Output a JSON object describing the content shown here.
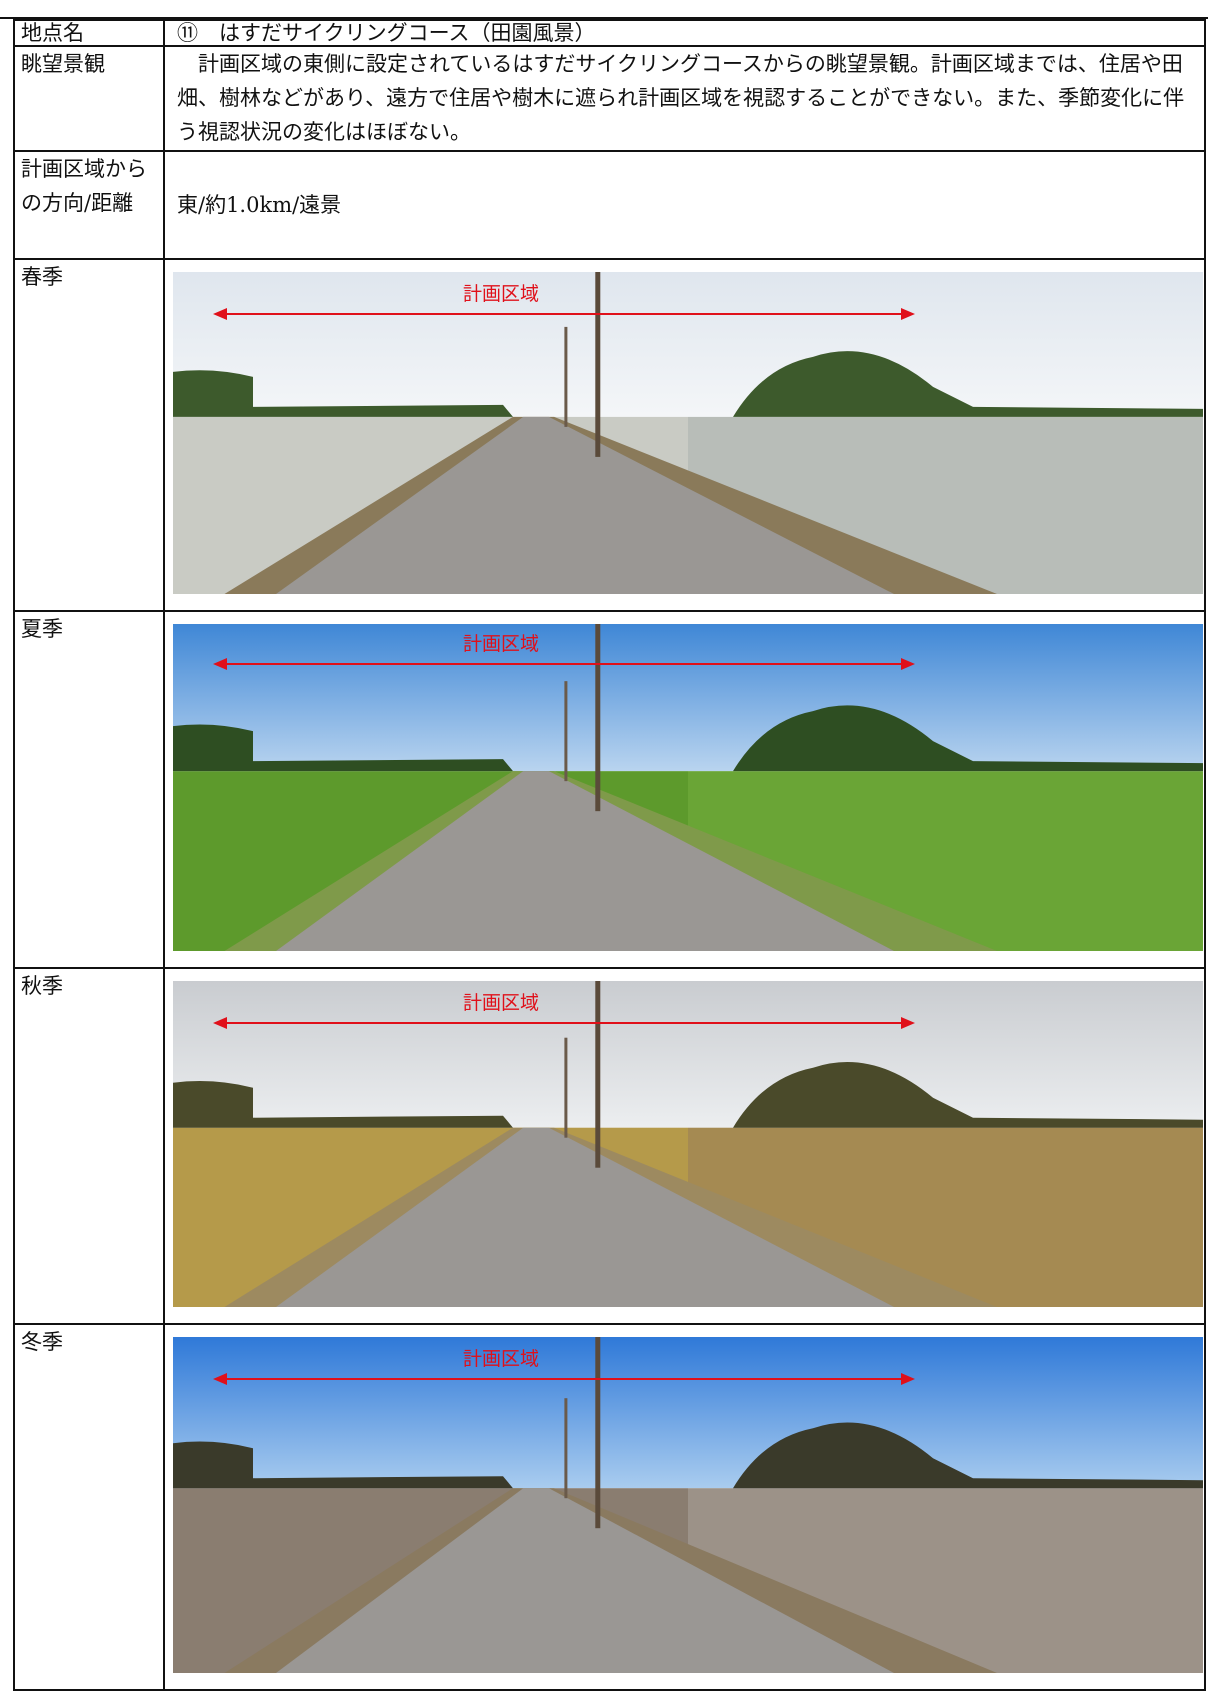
{
  "table": {
    "rows": [
      {
        "label": "地点名",
        "text": "⑪　はすだサイクリングコース（田園風景）"
      },
      {
        "label": "眺望景観",
        "text": "　計画区域の東側に設定されているはすだサイクリングコースからの眺望景観。計画区域までは、住居や田畑、樹林などがあり、遠方で住居や樹木に遮られ計画区域を視認することができない。また、季節変化に伴う視認状況の変化はほぼない。"
      },
      {
        "label": "計画区域からの方向/距離",
        "text": "東/約1.0km/遠景"
      }
    ],
    "photos": [
      {
        "season": "春季",
        "annotation": "計画区域"
      },
      {
        "season": "夏季",
        "annotation": "計画区域"
      },
      {
        "season": "秋季",
        "annotation": "計画区域"
      },
      {
        "season": "冬季",
        "annotation": "計画区域"
      }
    ]
  }
}
